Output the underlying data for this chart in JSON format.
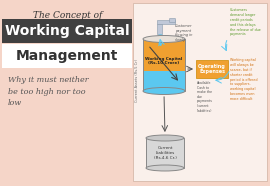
{
  "bg_color": "#f5d5c8",
  "title_italic": "The Concept of",
  "title_box_color": "#404040",
  "title_box_text": "Working Capital",
  "title_main2": "Management",
  "subtitle": "Why it must neither\nbe too high nor too\nlow",
  "tank_color_orange": "#f0a030",
  "tank_color_blue": "#5bc8f0",
  "expenses_box_color": "#f0a030",
  "expenses_text": "Operating\nExpenses",
  "working_capital_label": "Working Capital\n(Rs.10 Crore)",
  "current_liabilities_label": "Current\nLiabilities\n(Rs.4-6 Cr.)",
  "current_assets_label": "Current Assets (Rs.5 Cr)",
  "customer_payment_text": "Customer\npayment\nflowing in\nslowly",
  "available_cash_text": "Available\nCash to\nmake the\ndue\npayments\n(current\nliabilities)",
  "customers_demand_text": "Customers\ndemand longer\ncredit periods\nand this delays\nthe release of due\npayments",
  "working_capital_must_text": "Working capital\nwill always be\nscarce, but if\nshorter credit\nperiod is offered\nto suppliers,\nworking capital\nbecomes even\nmore difficult",
  "arrow_color": "#5bc8f0",
  "text_green": "#5a9a2a",
  "text_orange": "#d07010",
  "tap_color": "#c0c8d8",
  "drop_color": "#5bc8f0"
}
